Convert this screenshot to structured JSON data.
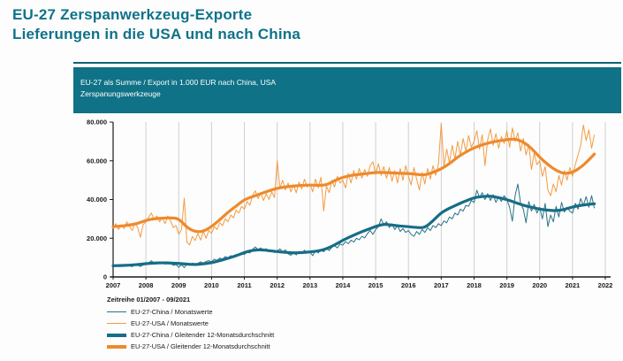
{
  "page": {
    "title_line1": "EU-27 Zerspanwerkzeug-Exporte",
    "title_line2": "Lieferungen in die USA und nach China"
  },
  "panel": {
    "header_line1": "EU-27 als Summe / Export in 1.000 EUR nach China, USA",
    "header_line2": "Zerspanungswerkzeuge"
  },
  "colors": {
    "title_text": "#0f7289",
    "header_bar": "#0f7287",
    "title_rule": "#0d6478",
    "grid": "#cfcfcf",
    "axis": "#1a1a1a",
    "tick_text": "#1a1a1a"
  },
  "chart_data": {
    "type": "line",
    "title": "EU-27 als Summe / Export in 1.000 EUR nach China, USA — Zerspanungswerkzeuge",
    "xlabel": "",
    "ylabel": "Export in 1.000 EUR",
    "x_range": [
      2007,
      2022
    ],
    "y_range": [
      0,
      80000
    ],
    "grid": "vertical-only",
    "legend_position": "bottom-left",
    "x_ticks": [
      "2007",
      "2008",
      "2009",
      "2010",
      "2011",
      "2012",
      "2013",
      "2014",
      "2015",
      "2016",
      "2017",
      "2018",
      "2019",
      "2020",
      "2021",
      "2022"
    ],
    "y_ticks": [
      {
        "value": 0,
        "label": "0"
      },
      {
        "value": 20000,
        "label": "20.000"
      },
      {
        "value": 40000,
        "label": "40.000"
      },
      {
        "value": 60000,
        "label": "60.000"
      },
      {
        "value": 80000,
        "label": "80.000"
      }
    ],
    "legend": {
      "title": "Zeitreihe 01/2007 - 09/2021"
    },
    "series": [
      {
        "name": "EU-27-China / Monatswerte",
        "color": "#2a7189",
        "width": 1,
        "smooth": false,
        "x_start": 2007,
        "x_step": 0.0833333,
        "x_end": 2021.667,
        "values": [
          5200,
          6100,
          5600,
          6300,
          5500,
          6400,
          5800,
          5300,
          6500,
          6000,
          5400,
          6200,
          6500,
          7200,
          8400,
          7000,
          7600,
          6800,
          7400,
          6600,
          7800,
          7000,
          6000,
          6400,
          5000,
          6300,
          4800,
          6800,
          6100,
          7200,
          6300,
          7000,
          7800,
          7200,
          8000,
          8400,
          7800,
          9200,
          8600,
          9800,
          9200,
          10500,
          9800,
          11000,
          10400,
          11600,
          11000,
          12200,
          11600,
          13000,
          12400,
          14200,
          15500,
          14000,
          15000,
          13400,
          14600,
          13000,
          13600,
          12600,
          13400,
          14500,
          13000,
          14000,
          12000,
          11200,
          12600,
          11400,
          13200,
          12000,
          13800,
          12400,
          12800,
          11000,
          13600,
          12400,
          14200,
          13000,
          14800,
          13600,
          15400,
          16200,
          15000,
          17000,
          16400,
          18200,
          17200,
          19000,
          18000,
          20000,
          19200,
          21000,
          20200,
          22400,
          24000,
          22000,
          24500,
          26000,
          30000,
          27000,
          28500,
          25500,
          27500,
          24500,
          26500,
          23500,
          25000,
          23000,
          24000,
          22000,
          21000,
          23500,
          22000,
          24500,
          23000,
          25500,
          24000,
          26500,
          25500,
          27500,
          26500,
          29000,
          28000,
          31000,
          30000,
          33000,
          32000,
          35000,
          34000,
          37000,
          36500,
          39500,
          38500,
          44800,
          41000,
          43500,
          40000,
          43000,
          39500,
          42500,
          38500,
          41500,
          39000,
          42000,
          40000,
          36000,
          28800,
          42000,
          48000,
          38000,
          35000,
          28000,
          39000,
          34000,
          37500,
          33000,
          36000,
          30000,
          38000,
          26000,
          32000,
          28500,
          36500,
          31000,
          38500,
          33500,
          36000,
          34000,
          33000,
          38000,
          35000,
          40500,
          37000,
          41500,
          36000,
          42000,
          35500
        ]
      },
      {
        "name": "EU-27-USA / Monatswerte",
        "color": "#f49b42",
        "width": 1,
        "smooth": false,
        "x_start": 2007,
        "x_step": 0.0833333,
        "x_end": 2021.667,
        "values": [
          25000,
          27500,
          24500,
          27000,
          25000,
          28500,
          26000,
          24000,
          28000,
          25500,
          20500,
          27000,
          28500,
          31000,
          33000,
          29500,
          31500,
          28500,
          30500,
          27500,
          31500,
          29000,
          25500,
          26500,
          22000,
          24500,
          40700,
          18000,
          16500,
          21000,
          18800,
          22500,
          19000,
          23500,
          20000,
          24000,
          22500,
          26000,
          24500,
          28000,
          26500,
          30000,
          28500,
          32000,
          30500,
          34500,
          33000,
          36500,
          35000,
          39000,
          37000,
          42000,
          44500,
          40500,
          43500,
          39500,
          43000,
          40000,
          44000,
          41000,
          60000,
          46000,
          50000,
          45000,
          48500,
          44000,
          47500,
          43500,
          49000,
          45500,
          50500,
          46500,
          48000,
          44000,
          50500,
          46000,
          51500,
          34000,
          47000,
          43500,
          50000,
          46500,
          52000,
          48500,
          50000,
          46000,
          53500,
          48500,
          55000,
          50500,
          56000,
          51000,
          55500,
          52000,
          57500,
          59500,
          53000,
          58500,
          52500,
          57000,
          51000,
          56500,
          49500,
          55000,
          48500,
          56000,
          50000,
          57500,
          52000,
          47500,
          56500,
          50500,
          44900,
          54000,
          48000,
          56000,
          50500,
          57500,
          52500,
          58500,
          79200,
          57000,
          66000,
          59000,
          68000,
          61000,
          70000,
          63000,
          71500,
          65000,
          73000,
          67000,
          70000,
          75500,
          66000,
          73500,
          57500,
          71000,
          76500,
          68000,
          74000,
          66500,
          72500,
          69000,
          75500,
          67000,
          77000,
          70000,
          74500,
          65000,
          71500,
          63000,
          68500,
          55500,
          64000,
          58000,
          60000,
          52000,
          57000,
          45000,
          42000,
          48000,
          44000,
          52500,
          47500,
          55000,
          50000,
          56500,
          52000,
          58000,
          63000,
          68000,
          78500,
          70500,
          76000,
          66500,
          73500
        ]
      },
      {
        "name": "EU-27-China / Gleitender 12-Monatsdurchschnitt",
        "color": "#176d85",
        "width": 3.2,
        "smooth": true,
        "x_start": 2007,
        "x_step": 0.25,
        "x_end": 2021.667,
        "values": [
          5800,
          5900,
          6100,
          6400,
          6900,
          7200,
          7300,
          7200,
          7000,
          6600,
          6400,
          6800,
          7300,
          8400,
          9600,
          11000,
          12600,
          13800,
          14100,
          13600,
          13100,
          12700,
          12400,
          12600,
          12900,
          13400,
          14500,
          16500,
          19000,
          21000,
          22800,
          24500,
          26100,
          27300,
          26800,
          26300,
          26000,
          25500,
          25400,
          29000,
          33300,
          35500,
          37500,
          39300,
          41000,
          41600,
          41800,
          41000,
          40000,
          38500,
          37000,
          36000,
          35000,
          34500,
          34200,
          34800,
          36200,
          37000,
          37500,
          37800
        ]
      },
      {
        "name": "EU-27-USA / Gleitender 12-Monatsdurchschnitt",
        "color": "#ee8a2b",
        "width": 3.2,
        "smooth": true,
        "x_start": 2007,
        "x_step": 0.25,
        "x_end": 2021.667,
        "values": [
          26000,
          26300,
          26800,
          27600,
          29300,
          30000,
          30400,
          30600,
          30200,
          25500,
          23300,
          23500,
          26000,
          29500,
          33400,
          36600,
          40000,
          41500,
          43000,
          44500,
          45800,
          46500,
          47000,
          47300,
          47500,
          47300,
          47500,
          49800,
          51500,
          52500,
          53000,
          53500,
          54000,
          54000,
          53800,
          53500,
          53500,
          53000,
          52600,
          54000,
          55800,
          58500,
          62000,
          64500,
          66800,
          68300,
          69500,
          70300,
          70900,
          71400,
          69800,
          66500,
          61800,
          58000,
          55000,
          53300,
          54000,
          56500,
          60500,
          63500
        ]
      }
    ]
  }
}
